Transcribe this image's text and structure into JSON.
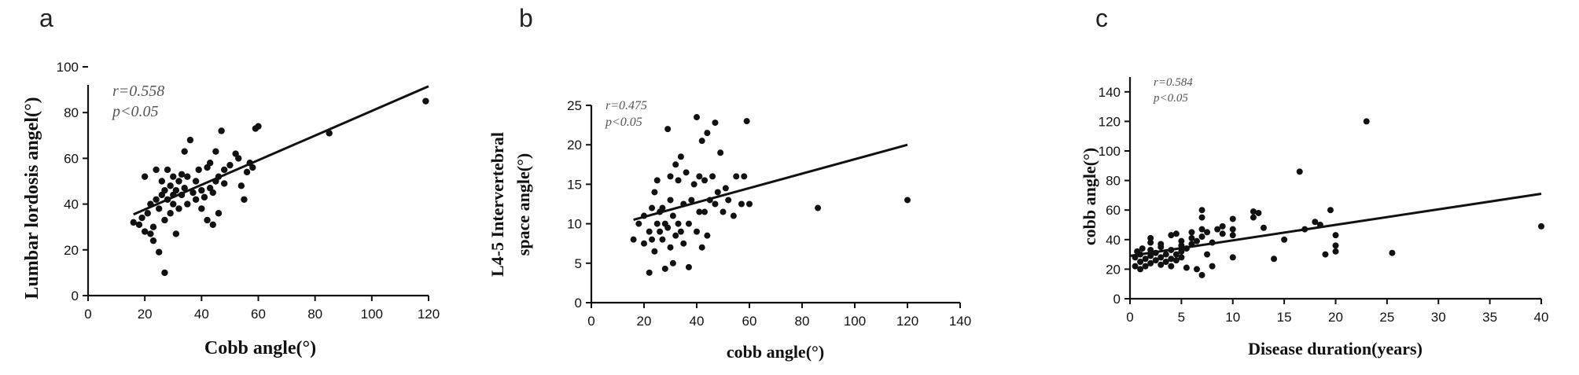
{
  "chart_data": [
    {
      "type": "scatter",
      "panel": "a",
      "xlabel": "Cobb angle(°)",
      "ylabel": "Lumbar lordosis angel(°)",
      "xlim": [
        0,
        120
      ],
      "ylim": [
        0,
        100
      ],
      "xticks": [
        0,
        20,
        40,
        60,
        80,
        100,
        120
      ],
      "yticks": [
        0,
        20,
        40,
        60,
        80,
        100
      ],
      "annotations": [
        "r=0.558",
        "p<0.05"
      ],
      "fit_line": [
        [
          16,
          35.5
        ],
        [
          120,
          91.5
        ]
      ],
      "points": [
        [
          16,
          32
        ],
        [
          18,
          31
        ],
        [
          19,
          34
        ],
        [
          20,
          28
        ],
        [
          20,
          52
        ],
        [
          21,
          36
        ],
        [
          22,
          27
        ],
        [
          22,
          40
        ],
        [
          23,
          24
        ],
        [
          23,
          30
        ],
        [
          24,
          42
        ],
        [
          24,
          55
        ],
        [
          25,
          19
        ],
        [
          25,
          38
        ],
        [
          26,
          44
        ],
        [
          26,
          50
        ],
        [
          27,
          33
        ],
        [
          27,
          46
        ],
        [
          27,
          10
        ],
        [
          28,
          42
        ],
        [
          28,
          55
        ],
        [
          29,
          48
        ],
        [
          29,
          36
        ],
        [
          30,
          40
        ],
        [
          30,
          52
        ],
        [
          30,
          44
        ],
        [
          31,
          46
        ],
        [
          31,
          27
        ],
        [
          32,
          38
        ],
        [
          32,
          50
        ],
        [
          33,
          44
        ],
        [
          33,
          53
        ],
        [
          34,
          47
        ],
        [
          34,
          63
        ],
        [
          35,
          40
        ],
        [
          35,
          52
        ],
        [
          36,
          68
        ],
        [
          37,
          45
        ],
        [
          38,
          42
        ],
        [
          38,
          50
        ],
        [
          39,
          55
        ],
        [
          40,
          38
        ],
        [
          40,
          46
        ],
        [
          41,
          43
        ],
        [
          42,
          56
        ],
        [
          42,
          33
        ],
        [
          43,
          58
        ],
        [
          43,
          47
        ],
        [
          44,
          31
        ],
        [
          44,
          45
        ],
        [
          45,
          63
        ],
        [
          45,
          50
        ],
        [
          46,
          36
        ],
        [
          46,
          52
        ],
        [
          47,
          72
        ],
        [
          48,
          49
        ],
        [
          48,
          55
        ],
        [
          50,
          57
        ],
        [
          52,
          62
        ],
        [
          53,
          60
        ],
        [
          54,
          48
        ],
        [
          55,
          42
        ],
        [
          56,
          54
        ],
        [
          57,
          58
        ],
        [
          58,
          56
        ],
        [
          59,
          73
        ],
        [
          60,
          74
        ],
        [
          85,
          71
        ],
        [
          119,
          85
        ]
      ]
    },
    {
      "type": "scatter",
      "panel": "b",
      "xlabel": "cobb angle(°)",
      "ylabel": "L4-5 Intervertebral space angle(°)",
      "ylabel_lines": [
        "L4-5 Intervertebral",
        "space angle(°)"
      ],
      "xlim": [
        0,
        140
      ],
      "ylim": [
        0,
        25
      ],
      "xticks": [
        0,
        20,
        40,
        60,
        80,
        100,
        120,
        140
      ],
      "yticks": [
        0,
        5,
        10,
        15,
        20,
        25
      ],
      "annotations": [
        "r=0.475",
        "p<0.05"
      ],
      "fit_line": [
        [
          16,
          10.5
        ],
        [
          120,
          20.0
        ]
      ],
      "points": [
        [
          16,
          8
        ],
        [
          18,
          10
        ],
        [
          20,
          7.5
        ],
        [
          20,
          11
        ],
        [
          22,
          9
        ],
        [
          22,
          3.8
        ],
        [
          23,
          12
        ],
        [
          23,
          8
        ],
        [
          24,
          14
        ],
        [
          24,
          6.5
        ],
        [
          25,
          10
        ],
        [
          25,
          15.5
        ],
        [
          26,
          9
        ],
        [
          26,
          11.5
        ],
        [
          27,
          8
        ],
        [
          27,
          12
        ],
        [
          28,
          4.3
        ],
        [
          28,
          10
        ],
        [
          29,
          22
        ],
        [
          29,
          9.5
        ],
        [
          30,
          7
        ],
        [
          30,
          13
        ],
        [
          30,
          16
        ],
        [
          31,
          5
        ],
        [
          31,
          11
        ],
        [
          32,
          8.5
        ],
        [
          32,
          17.5
        ],
        [
          33,
          10
        ],
        [
          33,
          15.5
        ],
        [
          34,
          9
        ],
        [
          34,
          18.5
        ],
        [
          35,
          7.5
        ],
        [
          35,
          12.5
        ],
        [
          36,
          16.5
        ],
        [
          37,
          4.5
        ],
        [
          37,
          10
        ],
        [
          38,
          13
        ],
        [
          39,
          15
        ],
        [
          40,
          23.5
        ],
        [
          40,
          9
        ],
        [
          41,
          16
        ],
        [
          41,
          11.5
        ],
        [
          42,
          7
        ],
        [
          42,
          20.5
        ],
        [
          43,
          11.5
        ],
        [
          43,
          15.5
        ],
        [
          44,
          8.5
        ],
        [
          44,
          21.5
        ],
        [
          45,
          13
        ],
        [
          46,
          16
        ],
        [
          47,
          22.8
        ],
        [
          47,
          12.5
        ],
        [
          48,
          14
        ],
        [
          49,
          19
        ],
        [
          50,
          11.5
        ],
        [
          51,
          14.5
        ],
        [
          52,
          13
        ],
        [
          54,
          11
        ],
        [
          55,
          16
        ],
        [
          57,
          12.5
        ],
        [
          58,
          16
        ],
        [
          59,
          23
        ],
        [
          60,
          12.5
        ],
        [
          86,
          12
        ],
        [
          120,
          13
        ]
      ]
    },
    {
      "type": "scatter",
      "panel": "c",
      "xlabel": "Disease duration(years)",
      "ylabel": "cobb angle(°)",
      "xlim": [
        0,
        40
      ],
      "ylim": [
        0,
        150
      ],
      "xticks": [
        0,
        5,
        10,
        15,
        20,
        25,
        30,
        35,
        40
      ],
      "yticks": [
        0,
        20,
        40,
        60,
        80,
        100,
        120,
        140
      ],
      "annotations": [
        "r=0.584",
        "p<0.05"
      ],
      "fit_line": [
        [
          0,
          29
        ],
        [
          40,
          71
        ]
      ],
      "points": [
        [
          0.5,
          22
        ],
        [
          0.5,
          28
        ],
        [
          0.7,
          32
        ],
        [
          1,
          20
        ],
        [
          1,
          25
        ],
        [
          1,
          30
        ],
        [
          1.2,
          34
        ],
        [
          1.5,
          22
        ],
        [
          1.5,
          27
        ],
        [
          2,
          24
        ],
        [
          2,
          29
        ],
        [
          2,
          33
        ],
        [
          2,
          38
        ],
        [
          2,
          41
        ],
        [
          2.5,
          26
        ],
        [
          2.5,
          31
        ],
        [
          3,
          23
        ],
        [
          3,
          28
        ],
        [
          3,
          35
        ],
        [
          3,
          37
        ],
        [
          3.5,
          25
        ],
        [
          3.5,
          30
        ],
        [
          4,
          22
        ],
        [
          4,
          27
        ],
        [
          4,
          33
        ],
        [
          4,
          43
        ],
        [
          4.5,
          26
        ],
        [
          4.5,
          30
        ],
        [
          4.5,
          44
        ],
        [
          5,
          28
        ],
        [
          5,
          32
        ],
        [
          5,
          36
        ],
        [
          5,
          39
        ],
        [
          5.5,
          21
        ],
        [
          5.5,
          34
        ],
        [
          6,
          37
        ],
        [
          6,
          41
        ],
        [
          6,
          45
        ],
        [
          6.5,
          20
        ],
        [
          6.5,
          39
        ],
        [
          7,
          16
        ],
        [
          7,
          42
        ],
        [
          7,
          47
        ],
        [
          7,
          55
        ],
        [
          7,
          60
        ],
        [
          7.5,
          30
        ],
        [
          7.5,
          45
        ],
        [
          8,
          38
        ],
        [
          8,
          22
        ],
        [
          8.5,
          47
        ],
        [
          9,
          44
        ],
        [
          9,
          49
        ],
        [
          10,
          28
        ],
        [
          10,
          43
        ],
        [
          10,
          47
        ],
        [
          10,
          54
        ],
        [
          12,
          55
        ],
        [
          12,
          59
        ],
        [
          12.5,
          58
        ],
        [
          13,
          48
        ],
        [
          14,
          27
        ],
        [
          15,
          40
        ],
        [
          16.5,
          86
        ],
        [
          17,
          47
        ],
        [
          18,
          52
        ],
        [
          18.5,
          50
        ],
        [
          19,
          30
        ],
        [
          19.5,
          60
        ],
        [
          20,
          32
        ],
        [
          20,
          36
        ],
        [
          20,
          43
        ],
        [
          23,
          120
        ],
        [
          25.5,
          31
        ],
        [
          40,
          49
        ]
      ]
    }
  ]
}
